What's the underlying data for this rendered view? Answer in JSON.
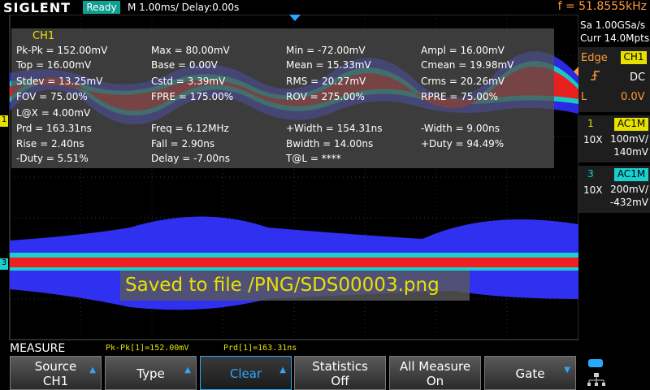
{
  "header": {
    "brand": "SIGLENT",
    "status": "Ready",
    "timebase": "M 1.00ms/ Delay:0.00s",
    "frequency": "f = 51.8555kHz"
  },
  "acquisition": {
    "sample_rate": "Sa 1.00GSa/s",
    "memory": "Curr 14.0Mpts"
  },
  "trigger": {
    "type": "Edge",
    "source": "CH1",
    "coupling": "DC",
    "level_label": "L",
    "level": "0.0V"
  },
  "channels": [
    {
      "number": "1",
      "coupling": "AC1M",
      "probe": "10X",
      "scale": "100mV/",
      "offset": "140mV"
    },
    {
      "number": "3",
      "coupling": "AC1M",
      "probe": "10X",
      "scale": "200mV/",
      "offset": "-432mV"
    }
  ],
  "measure_panel": {
    "source": "CH1",
    "rows": [
      [
        "Pk-Pk = 152.00mV",
        "Max = 80.00mV",
        "Min = -72.00mV",
        "Ampl = 16.00mV"
      ],
      [
        "Top = 16.00mV",
        "Base = 0.00V",
        "Mean = 15.33mV",
        "Cmean = 19.98mV"
      ],
      [
        "Stdev = 13.25mV",
        "Cstd = 3.39mV",
        "RMS = 20.27mV",
        "Crms = 20.26mV"
      ],
      [
        "FOV = 75.00%",
        "FPRE = 175.00%",
        "ROV = 275.00%",
        "RPRE = 75.00%"
      ],
      [
        "L@X = 4.00mV"
      ],
      [
        "Prd = 163.31ns",
        "Freq = 6.12MHz",
        "+Width = 154.31ns",
        "-Width = 9.00ns"
      ],
      [
        "Rise = 2.40ns",
        "Fall = 2.90ns",
        "Bwidth = 14.00ns",
        "+Duty = 94.49%"
      ],
      [
        "-Duty = 5.51%",
        "Delay = -7.00ns",
        "T@L = ****"
      ]
    ]
  },
  "message": "Saved to file /PNG/SDS00003.png",
  "footer": {
    "menu": "MEASURE",
    "readouts": [
      "Pk-Pk[1]=152.00mV",
      "Prd[1]=163.31ns"
    ]
  },
  "softkeys": [
    {
      "label": "Source",
      "value": "CH1"
    },
    {
      "label": "Type"
    },
    {
      "label": "Clear"
    },
    {
      "label": "Statistics",
      "value": "Off"
    },
    {
      "label": "All Measure",
      "value": "On"
    },
    {
      "label": "Gate"
    }
  ]
}
